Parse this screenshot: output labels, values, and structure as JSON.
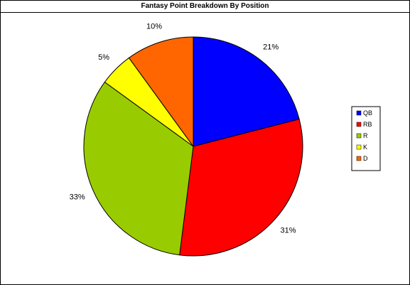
{
  "chart_data": {
    "type": "pie",
    "title": "Fantasy Point Breakdown By Position",
    "categories": [
      "QB",
      "RB",
      "R",
      "K",
      "D"
    ],
    "values": [
      21,
      31,
      33,
      5,
      10
    ],
    "data_labels": [
      "21%",
      "31%",
      "33%",
      "5%",
      "10%"
    ],
    "colors": [
      "#0000ff",
      "#ff0000",
      "#99cc00",
      "#ffff00",
      "#ff6600"
    ],
    "start_angle_deg": 0,
    "direction": "clockwise",
    "legend": {
      "placement": "right",
      "entries": [
        "QB",
        "RB",
        "R",
        "K",
        "D"
      ]
    }
  }
}
